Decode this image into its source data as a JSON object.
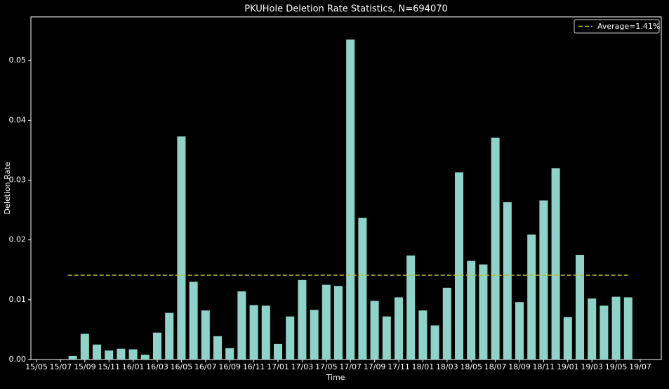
{
  "chart_data": {
    "type": "bar",
    "title": "PKUHole Deletion Rate Statistics, N=694070",
    "x_label": "Time",
    "y_label": "Deletion Rate",
    "x": [
      "15/08",
      "15/09",
      "15/10",
      "15/11",
      "15/12",
      "16/01",
      "16/02",
      "16/03",
      "16/04",
      "16/05",
      "16/06",
      "16/07",
      "16/08",
      "16/09",
      "16/10",
      "16/11",
      "16/12",
      "17/01",
      "17/02",
      "17/03",
      "17/04",
      "17/05",
      "17/06",
      "17/07",
      "17/08",
      "17/09",
      "17/10",
      "17/11",
      "17/12",
      "18/01",
      "18/02",
      "18/03",
      "18/04",
      "18/05",
      "18/06",
      "18/07",
      "18/08",
      "18/09",
      "18/10",
      "18/11",
      "18/12",
      "19/01",
      "19/02",
      "19/03",
      "19/04",
      "19/05",
      "19/06"
    ],
    "values": [
      0.0006,
      0.0043,
      0.0025,
      0.0015,
      0.0018,
      0.0017,
      0.0008,
      0.0045,
      0.0078,
      0.0373,
      0.013,
      0.0082,
      0.0039,
      0.0019,
      0.0114,
      0.0091,
      0.009,
      0.0026,
      0.0072,
      0.0133,
      0.0083,
      0.0125,
      0.0123,
      0.0535,
      0.0237,
      0.0098,
      0.0072,
      0.0104,
      0.0174,
      0.0082,
      0.0057,
      0.012,
      0.0313,
      0.0165,
      0.0159,
      0.0371,
      0.0263,
      0.0096,
      0.0209,
      0.0266,
      0.032,
      0.0071,
      0.0175,
      0.0102,
      0.009,
      0.0105,
      0.0104
    ],
    "color": "#8dd3c7",
    "average": {
      "name": "Average=1.41%",
      "value": 0.0141,
      "color": "#bcbd22"
    },
    "legend": "upper right",
    "xticks": [
      "15/05",
      "15/07",
      "15/09",
      "15/11",
      "16/01",
      "16/03",
      "16/05",
      "16/07",
      "16/09",
      "16/11",
      "17/01",
      "17/03",
      "17/05",
      "17/07",
      "17/09",
      "17/11",
      "18/01",
      "18/03",
      "18/05",
      "18/07",
      "18/09",
      "18/11",
      "19/01",
      "19/03",
      "19/05",
      "19/07"
    ],
    "ylim": [
      0,
      0.0573
    ],
    "yticks": [
      {
        "value": 0,
        "label": "0.00"
      },
      0.01,
      0.02,
      0.03,
      0.04,
      0.05
    ]
  }
}
